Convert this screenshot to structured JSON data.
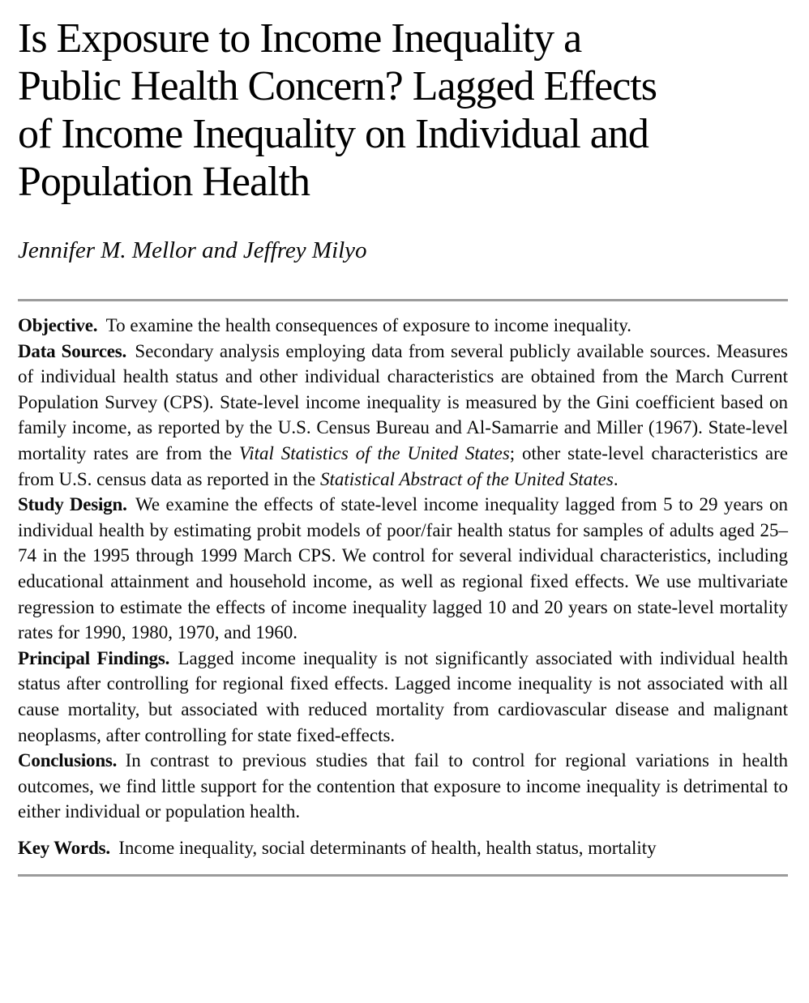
{
  "theme": {
    "background": "#ffffff",
    "text_color": "#0a0a0a",
    "rule_color": "#9b9b9b"
  },
  "title": {
    "lines": [
      "Is Exposure to Income Inequality a",
      "Public Health Concern? Lagged Effects",
      "of Income Inequality on Individual and",
      "Population Health"
    ]
  },
  "authors": "Jennifer M. Mellor and Jeffrey Milyo",
  "abstract": {
    "sections": [
      {
        "id": "objective",
        "label": "Objective.",
        "gap_before": false,
        "parts": [
          {
            "text": "To examine the health consequences of exposure to income inequality.",
            "italic": false
          }
        ]
      },
      {
        "id": "data-sources",
        "label": "Data Sources.",
        "gap_before": false,
        "parts": [
          {
            "text": "Secondary analysis employing data from several publicly available sources. Measures of individual health status and other individual characteristics are obtained from the March Current Population Survey (CPS). State-level income inequality is measured by the Gini coefficient based on family income, as reported by the U.S. Census Bureau and Al-Samarrie and Miller (1967). State-level mortality rates are from the ",
            "italic": false
          },
          {
            "text": "Vital Statistics of the United States",
            "italic": true
          },
          {
            "text": "; other state-level characteristics are from U.S. census data as reported in the ",
            "italic": false
          },
          {
            "text": "Statistical Abstract of the United States",
            "italic": true
          },
          {
            "text": ".",
            "italic": false
          }
        ]
      },
      {
        "id": "study-design",
        "label": "Study Design.",
        "gap_before": false,
        "parts": [
          {
            "text": "We examine the effects of state-level income inequality lagged from 5 to 29 years on individual health by estimating probit models of poor/fair health status for samples of adults aged 25–74 in the 1995 through 1999 March CPS. We control for several individual characteristics, including educational attainment and household income, as well as regional fixed effects. We use multivariate regression to estimate the effects of income inequality lagged 10 and 20 years on state-level mortality rates for 1990, 1980, 1970, and 1960.",
            "italic": false
          }
        ]
      },
      {
        "id": "principal-findings",
        "label": "Principal Findings.",
        "gap_before": false,
        "parts": [
          {
            "text": "Lagged income inequality is not significantly associated with individual health status after controlling for regional fixed effects. Lagged income inequality is not associated with all cause mortality, but associated with reduced mortality from cardiovascular disease and malignant neoplasms, after controlling for state fixed-effects.",
            "italic": false
          }
        ]
      },
      {
        "id": "conclusions",
        "label": "Conclusions.",
        "gap_before": false,
        "parts": [
          {
            "text": "In contrast to previous studies that fail to control for regional variations in health outcomes, we find little support for the contention that exposure to income inequality is detrimental to either individual or population health.",
            "italic": false
          }
        ]
      },
      {
        "id": "key-words",
        "label": "Key Words.",
        "gap_before": true,
        "parts": [
          {
            "text": "Income inequality, social determinants of health, health status, mortality",
            "italic": false
          }
        ]
      }
    ]
  }
}
